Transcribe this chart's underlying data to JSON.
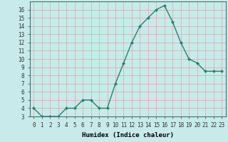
{
  "xlabel": "Humidex (Indice chaleur)",
  "ylabel": "",
  "x": [
    0,
    1,
    2,
    3,
    4,
    5,
    6,
    7,
    8,
    9,
    10,
    11,
    12,
    13,
    14,
    15,
    16,
    17,
    18,
    19,
    20,
    21,
    22,
    23
  ],
  "y": [
    4,
    3,
    3,
    3,
    4,
    4,
    5,
    5,
    4,
    4,
    7,
    9.5,
    12,
    14,
    15,
    16,
    16.5,
    14.5,
    12,
    10,
    9.5,
    8.5,
    8.5,
    8.5
  ],
  "line_color": "#2e7d6e",
  "bg_color": "#c8eaea",
  "grid_color": "#d4a8a8",
  "ylim": [
    3,
    17
  ],
  "xlim": [
    -0.5,
    23.5
  ],
  "yticks": [
    3,
    4,
    5,
    6,
    7,
    8,
    9,
    10,
    11,
    12,
    13,
    14,
    15,
    16
  ],
  "xticks": [
    0,
    1,
    2,
    3,
    4,
    5,
    6,
    7,
    8,
    9,
    10,
    11,
    12,
    13,
    14,
    15,
    16,
    17,
    18,
    19,
    20,
    21,
    22,
    23
  ],
  "tick_fontsize": 5.5,
  "xlabel_fontsize": 6.5,
  "marker": "D",
  "marker_size": 2.0,
  "line_width": 1.0
}
